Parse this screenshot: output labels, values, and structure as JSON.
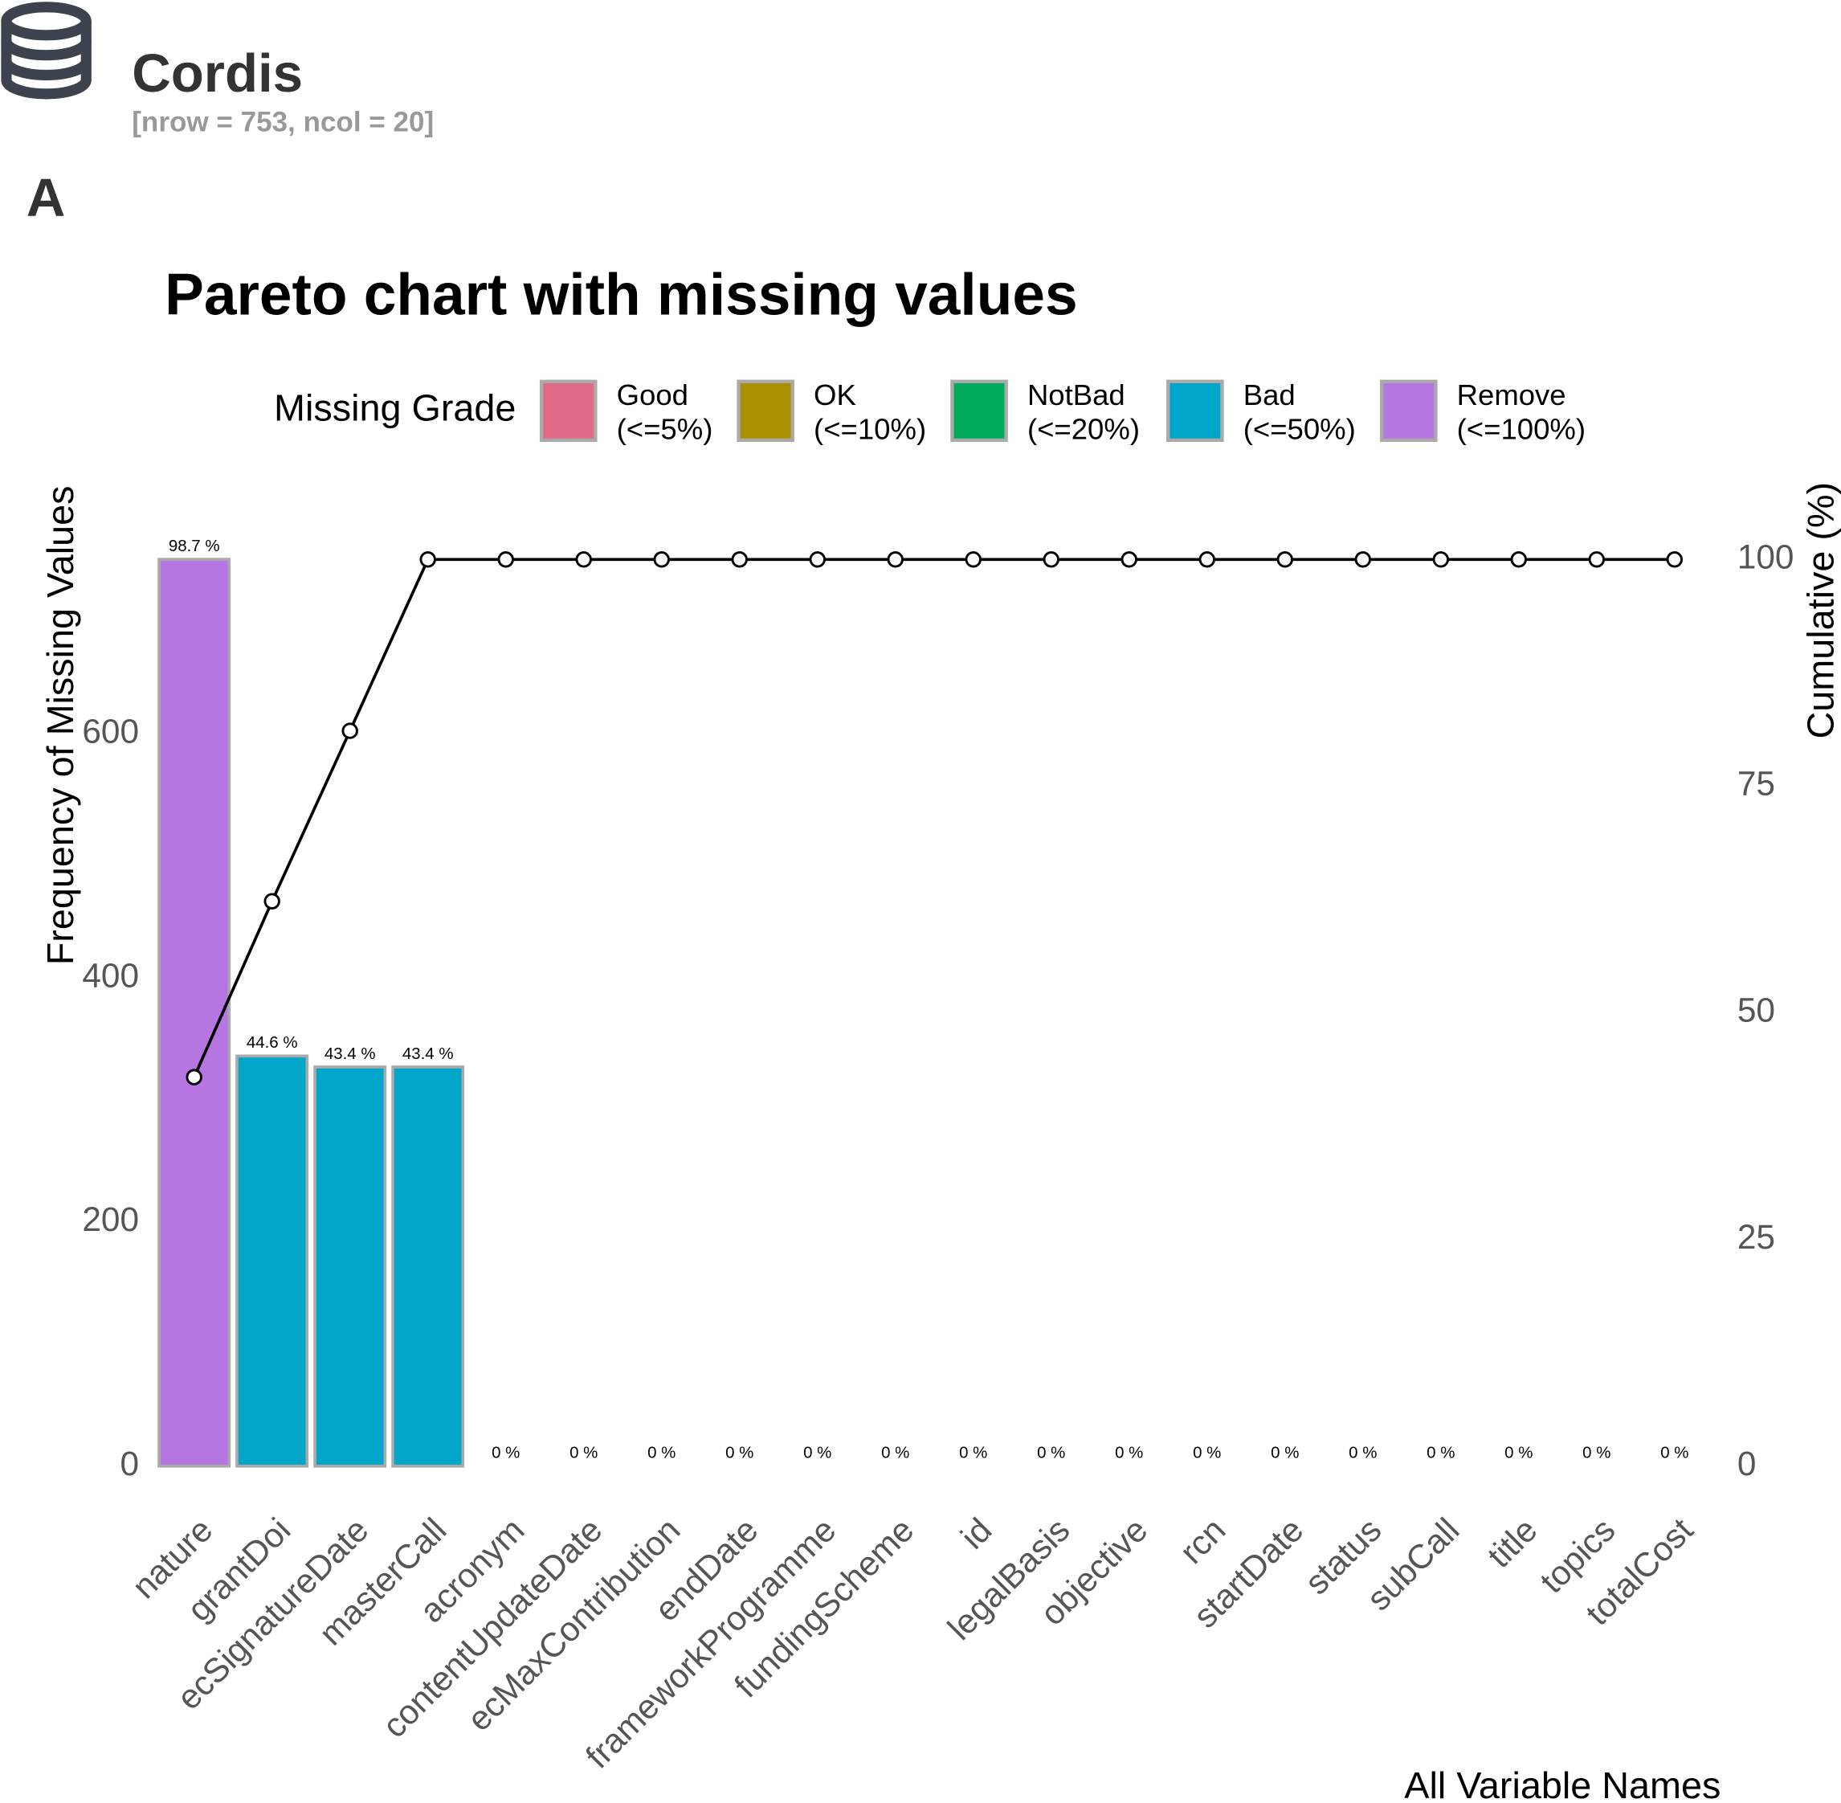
{
  "header": {
    "title": "Cordis",
    "subtitle": "[nrow = 753, ncol = 20]",
    "panel": "A"
  },
  "chart_data": {
    "type": "pareto",
    "title": "Pareto chart with missing values",
    "legend_title": "Missing Grade",
    "legend": [
      {
        "name": "Good",
        "range": "(<=5%)",
        "color": "#E16A86"
      },
      {
        "name": "OK",
        "range": "(<=10%)",
        "color": "#AA9000"
      },
      {
        "name": "NotBad",
        "range": "(<=20%)",
        "color": "#00AA5A"
      },
      {
        "name": "Bad",
        "range": "(<=50%)",
        "color": "#00A6CA"
      },
      {
        "name": "Remove",
        "range": "(<=100%)",
        "color": "#B675E0"
      }
    ],
    "categories": [
      "nature",
      "grantDoi",
      "ecSignatureDate",
      "masterCall",
      "acronym",
      "contentUpdateDate",
      "ecMaxContribution",
      "endDate",
      "frameworkProgramme",
      "fundingScheme",
      "id",
      "legalBasis",
      "objective",
      "rcn",
      "startDate",
      "status",
      "subCall",
      "title",
      "topics",
      "totalCost"
    ],
    "series": [
      {
        "type": "bar",
        "colors": [
          "#B675E0",
          "#00A6CA",
          "#00A6CA",
          "#00A6CA",
          "#E16A86",
          "#E16A86",
          "#E16A86",
          "#E16A86",
          "#E16A86",
          "#E16A86",
          "#E16A86",
          "#E16A86",
          "#E16A86",
          "#E16A86",
          "#E16A86",
          "#E16A86",
          "#E16A86",
          "#E16A86",
          "#E16A86",
          "#E16A86"
        ],
        "values": [
          743,
          336,
          327,
          327,
          0,
          0,
          0,
          0,
          0,
          0,
          0,
          0,
          0,
          0,
          0,
          0,
          0,
          0,
          0,
          0
        ],
        "percent_values": [
          98.7,
          44.6,
          43.4,
          43.4,
          0,
          0,
          0,
          0,
          0,
          0,
          0,
          0,
          0,
          0,
          0,
          0,
          0,
          0,
          0,
          0
        ],
        "percent_labels": [
          "98.7 %",
          "44.6 %",
          "43.4 %",
          "43.4 %",
          "0 %",
          "0 %",
          "0 %",
          "0 %",
          "0 %",
          "0 %",
          "0 %",
          "0 %",
          "0 %",
          "0 %",
          "0 %",
          "0 %",
          "0 %",
          "0 %",
          "0 %",
          "0 %"
        ]
      },
      {
        "type": "line",
        "axis": "y2",
        "color": "#000000",
        "values": [
          42.9,
          62.3,
          81.1,
          100,
          100,
          100,
          100,
          100,
          100,
          100,
          100,
          100,
          100,
          100,
          100,
          100,
          100,
          100,
          100,
          100
        ]
      }
    ],
    "y_label": "Frequency of Missing Values",
    "y2_label": "Cumulative (%)",
    "x_label": "All Variable Names",
    "ylim": [
      0,
      780
    ],
    "yticks": [
      0,
      200,
      400,
      600
    ],
    "y2lim": [
      0,
      105
    ],
    "y2ticks": [
      0,
      25,
      50,
      75,
      100
    ],
    "grid": false
  }
}
